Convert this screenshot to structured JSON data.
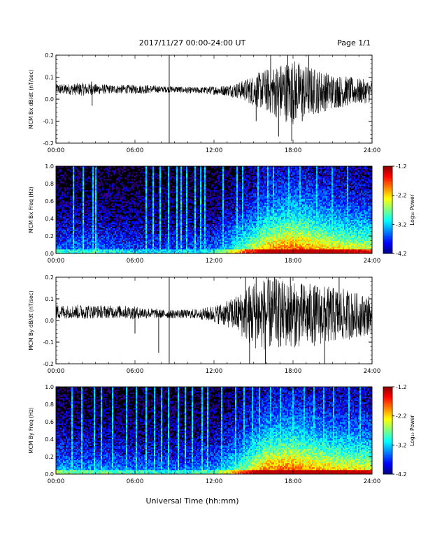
{
  "header": {
    "title": "2017/11/27  00:00-24:00 UT",
    "page": "Page 1/1"
  },
  "footer": {
    "xlabel": "Universal Time (hh:mm)"
  },
  "x_ticks": [
    "00:00",
    "06:00",
    "12:00",
    "18:00",
    "24:00"
  ],
  "colorbar": {
    "ticks": [
      "-1.2",
      "-2.2",
      "-3.2",
      "-4.2"
    ],
    "label": "Log₁₀ Power",
    "range": [
      -4.2,
      -1.2
    ]
  },
  "colors": {
    "background": "#ffffff",
    "spectrogram_bg": "#000000",
    "trace": "#000000"
  },
  "chart_data": [
    {
      "type": "line",
      "id": "bx-dbdt",
      "ylabel": "MCM Bx dB/dt (nT/sec)",
      "yticks": [
        "0.2",
        "0.1",
        "0.0",
        "-0.1",
        "-0.2"
      ],
      "ylim": [
        -0.2,
        0.2
      ],
      "xlim": [
        0,
        24
      ],
      "x_unit": "hours UT",
      "envelope": {
        "x": [
          0,
          1,
          2,
          3,
          4,
          5,
          6,
          7,
          8,
          9,
          10,
          11,
          12,
          13,
          14,
          15,
          16,
          17,
          18,
          19,
          20,
          21,
          22,
          23,
          24
        ],
        "baseline": [
          0.045,
          0.045,
          0.045,
          0.045,
          0.045,
          0.045,
          0.045,
          0.045,
          0.045,
          0.045,
          0.04,
          0.04,
          0.04,
          0.04,
          0.04,
          0.04,
          0.04,
          0.035,
          0.035,
          0.035,
          0.035,
          0.035,
          0.035,
          0.035,
          0.035
        ],
        "amplitude": [
          0.025,
          0.025,
          0.03,
          0.025,
          0.02,
          0.02,
          0.02,
          0.02,
          0.015,
          0.015,
          0.015,
          0.015,
          0.02,
          0.025,
          0.04,
          0.07,
          0.1,
          0.13,
          0.15,
          0.12,
          0.1,
          0.08,
          0.07,
          0.06,
          0.05
        ]
      },
      "spikes": [
        {
          "x": 2.7,
          "y": 0.08
        },
        {
          "x": 2.75,
          "y": -0.03
        },
        {
          "x": 8.6,
          "y": 0.2
        },
        {
          "x": 8.6,
          "y": -0.2
        },
        {
          "x": 15.2,
          "y": -0.1
        },
        {
          "x": 16.3,
          "y": 0.2
        },
        {
          "x": 16.9,
          "y": -0.17
        },
        {
          "x": 17.6,
          "y": 0.2
        },
        {
          "x": 17.9,
          "y": -0.19
        },
        {
          "x": 18.7,
          "y": -0.1
        },
        {
          "x": 19.2,
          "y": 0.2
        }
      ]
    },
    {
      "type": "heatmap",
      "id": "bx-freq",
      "ylabel": "MCM Bx Freq (Hz)",
      "yticks": [
        "1.0",
        "0.8",
        "0.6",
        "0.4",
        "0.2",
        "0.0"
      ],
      "ylim": [
        0,
        1.0
      ],
      "xlim": [
        0,
        24
      ],
      "activity_hours": [
        0,
        2,
        4,
        6,
        8,
        10,
        12,
        14,
        16,
        18,
        20,
        22,
        24
      ],
      "activity": [
        0.3,
        0.3,
        0.3,
        0.25,
        0.25,
        0.25,
        0.3,
        0.55,
        0.85,
        0.95,
        0.85,
        0.75,
        0.7
      ],
      "streaks_hours": [
        1.3,
        2.0,
        2.8,
        3.0,
        6.8,
        7.3,
        7.9,
        8.5,
        9.1,
        9.5,
        9.9,
        10.5,
        10.9,
        11.3,
        12.6,
        13.7,
        14.1,
        15.3,
        16.0,
        16.5,
        17.6,
        18.5,
        19.7,
        20.9,
        22.1
      ],
      "colorbar": true
    },
    {
      "type": "line",
      "id": "by-dbdt",
      "ylabel": "MCM By dB/dt (nT/sec)",
      "yticks": [
        "0.2",
        "0.1",
        "0.0",
        "-0.1",
        "-0.2"
      ],
      "ylim": [
        -0.2,
        0.2
      ],
      "xlim": [
        0,
        24
      ],
      "x_unit": "hours UT",
      "envelope": {
        "x": [
          0,
          1,
          2,
          3,
          4,
          5,
          6,
          7,
          8,
          9,
          10,
          11,
          12,
          13,
          14,
          15,
          16,
          17,
          18,
          19,
          20,
          21,
          22,
          23,
          24
        ],
        "baseline": [
          0.04,
          0.04,
          0.04,
          0.04,
          0.04,
          0.04,
          0.035,
          0.035,
          0.03,
          0.03,
          0.03,
          0.03,
          0.03,
          0.03,
          0.03,
          0.03,
          0.03,
          0.03,
          0.025,
          0.025,
          0.025,
          0.025,
          0.025,
          0.025,
          0.025
        ],
        "amplitude": [
          0.035,
          0.03,
          0.035,
          0.03,
          0.03,
          0.03,
          0.03,
          0.025,
          0.02,
          0.02,
          0.02,
          0.025,
          0.04,
          0.06,
          0.1,
          0.16,
          0.17,
          0.16,
          0.15,
          0.15,
          0.14,
          0.13,
          0.12,
          0.1,
          0.09
        ]
      },
      "spikes": [
        {
          "x": 6.0,
          "y": -0.06
        },
        {
          "x": 7.8,
          "y": -0.15
        },
        {
          "x": 8.6,
          "y": 0.2
        },
        {
          "x": 8.6,
          "y": -0.2
        },
        {
          "x": 14.4,
          "y": 0.2
        },
        {
          "x": 14.7,
          "y": -0.2
        },
        {
          "x": 15.2,
          "y": 0.2
        },
        {
          "x": 15.9,
          "y": -0.2
        },
        {
          "x": 16.6,
          "y": 0.2
        },
        {
          "x": 17.8,
          "y": 0.2
        },
        {
          "x": 20.4,
          "y": -0.2
        },
        {
          "x": 21.5,
          "y": 0.2
        }
      ]
    },
    {
      "type": "heatmap",
      "id": "by-freq",
      "ylabel": "MCM By Freq (Hz)",
      "yticks": [
        "1.0",
        "0.8",
        "0.6",
        "0.4",
        "0.2",
        "0.0"
      ],
      "ylim": [
        0,
        1.0
      ],
      "xlim": [
        0,
        24
      ],
      "activity_hours": [
        0,
        2,
        4,
        6,
        8,
        10,
        12,
        14,
        16,
        18,
        20,
        22,
        24
      ],
      "activity": [
        0.4,
        0.35,
        0.35,
        0.3,
        0.3,
        0.3,
        0.35,
        0.6,
        0.9,
        0.95,
        0.85,
        0.8,
        0.75
      ],
      "streaks_hours": [
        1.2,
        1.9,
        2.9,
        3.4,
        4.2,
        5.3,
        6.1,
        6.8,
        7.4,
        8.0,
        8.5,
        9.2,
        9.8,
        10.3,
        11.0,
        11.5,
        12.5,
        13.6,
        14.2,
        14.9,
        15.4,
        16.2,
        17.0,
        17.9,
        18.8,
        19.5,
        20.3,
        21.0,
        22.2,
        23.0
      ],
      "colorbar": true
    }
  ]
}
